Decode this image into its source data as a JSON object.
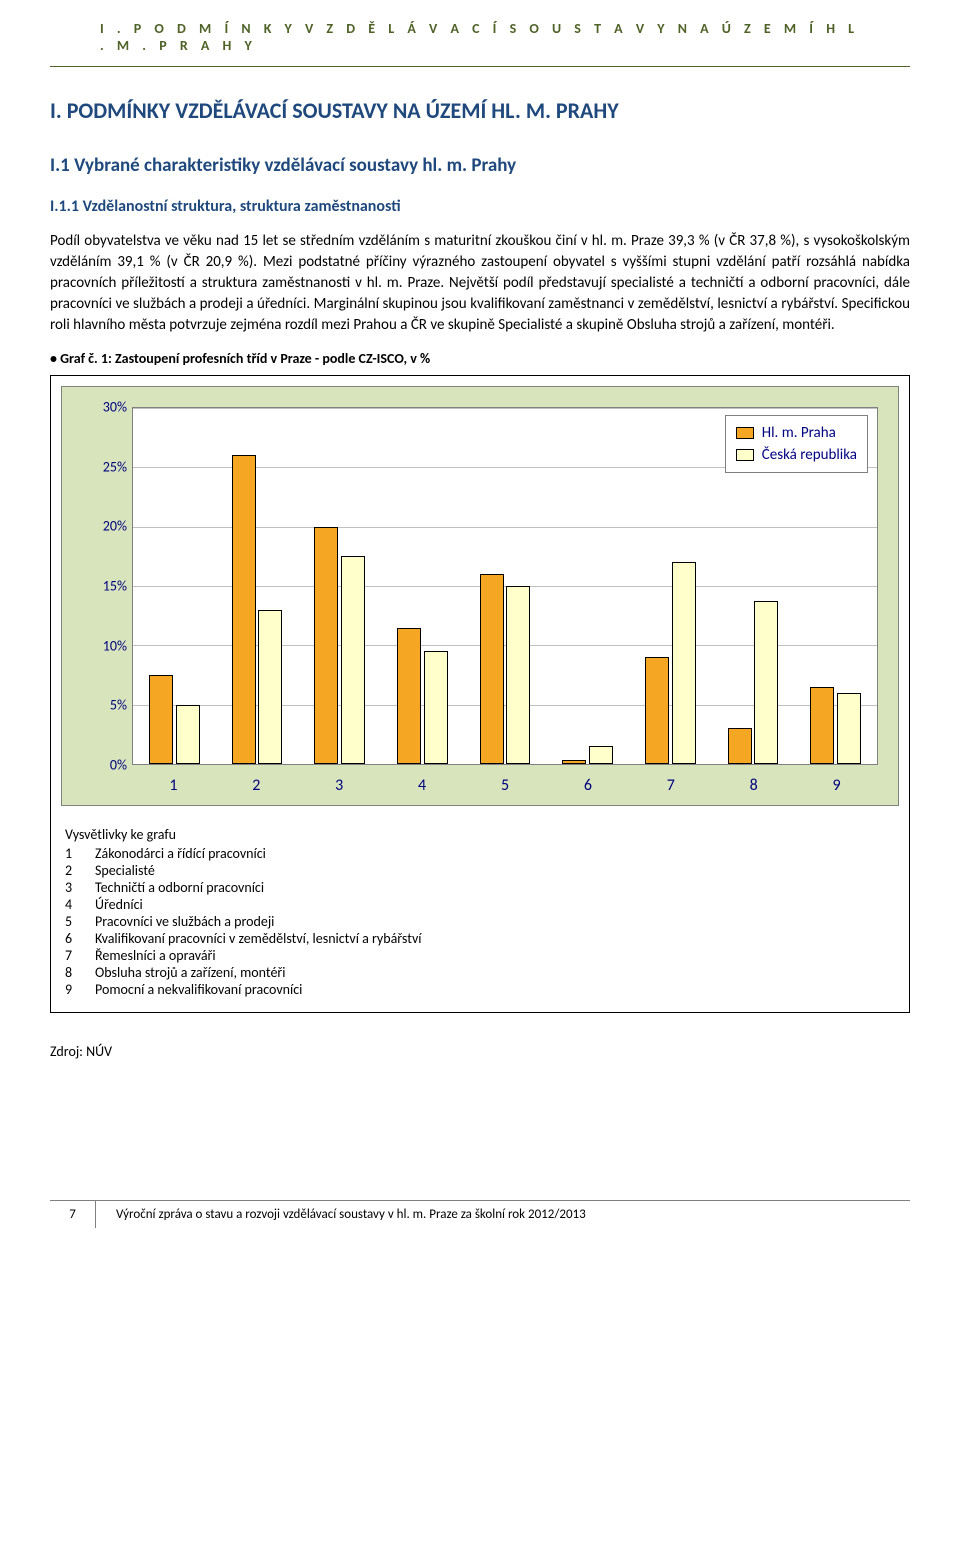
{
  "header_runner": "I .   P O D M Í N K Y   V Z D Ě L Á V A C Í   S O U S T A V Y   N A   Ú Z E M Í   H L .   M .   P R A H Y",
  "h1": "I. PODMÍNKY VZDĚLÁVACÍ SOUSTAVY NA ÚZEMÍ HL. M. PRAHY",
  "h2": "I.1 Vybrané charakteristiky vzdělávací soustavy hl. m. Prahy",
  "h3": "I.1.1 Vzdělanostní struktura, struktura zaměstnanosti",
  "body_p1": "Podíl obyvatelstva ve věku nad 15 let se středním vzděláním s maturitní zkouškou činí v hl. m. Praze 39,3 % (v ČR 37,8 %), s vysokoškolským vzděláním 39,1 % (v ČR 20,9 %). Mezi podstatné příčiny výrazného zastoupení obyvatel s vyššími stupni vzdělání patří rozsáhlá nabídka pracovních příležitostí a struktura zaměstnanosti v hl. m. Praze. Největší podíl představují specialisté a techničtí a odborní pracovníci, dále pracovníci ve službách a prodeji a úředníci. Marginální skupinou jsou kvalifikovaní zaměstnanci v zemědělství, lesnictví a rybářství. Specifickou roli hlavního města potvrzuje zejména rozdíl mezi Prahou a ČR ve skupině Specialisté a skupině Obsluha strojů a zařízení, montéři.",
  "chart": {
    "title": "Graf č. 1: Zastoupení profesních tříd v Praze - podle CZ-ISCO, v %",
    "type": "bar",
    "ylim": [
      0,
      30
    ],
    "ytick_step": 5,
    "ytick_labels": [
      "0%",
      "5%",
      "10%",
      "15%",
      "20%",
      "25%",
      "30%"
    ],
    "categories": [
      "1",
      "2",
      "3",
      "4",
      "5",
      "6",
      "7",
      "8",
      "9"
    ],
    "series": [
      {
        "name": "Hl. m. Praha",
        "color": "#f5a623",
        "values": [
          7.5,
          26,
          20,
          11.5,
          16,
          0.3,
          9,
          3,
          6.5
        ]
      },
      {
        "name": "Česká republika",
        "color": "#ffffcc",
        "values": [
          5,
          13,
          17.5,
          9.5,
          15,
          1.5,
          17,
          13.7,
          6
        ]
      }
    ],
    "background_color": "#d8e4bc",
    "plot_bg": "#ffffff",
    "grid_color": "#c0c0c0",
    "bar_width_pct": 3.2,
    "group_gap_pct": 0.4,
    "legend": {
      "title": null,
      "items": [
        {
          "swatch": "#f5a623",
          "label": "Hl. m. Praha"
        },
        {
          "swatch": "#ffffcc",
          "label": "Česká republika"
        }
      ]
    },
    "explain": {
      "title": "Vysvětlivky ke grafu",
      "rows": [
        {
          "n": "1",
          "t": "Zákonodárci a řídící pracovníci"
        },
        {
          "n": "2",
          "t": "Specialisté"
        },
        {
          "n": "3",
          "t": "Techničtí a odborní pracovníci"
        },
        {
          "n": "4",
          "t": "Úředníci"
        },
        {
          "n": "5",
          "t": "Pracovníci ve službách a prodeji"
        },
        {
          "n": "6",
          "t": "Kvalifikovaní pracovníci v zemědělství, lesnictví a rybářství"
        },
        {
          "n": "7",
          "t": "Řemeslníci a opraváři"
        },
        {
          "n": "8",
          "t": "Obsluha strojů a zařízení, montéři"
        },
        {
          "n": "9",
          "t": "Pomocní a nekvalifikovaní pracovníci"
        }
      ]
    }
  },
  "source": "Zdroj: NÚV",
  "footer": {
    "page": "7",
    "text": "Výroční zpráva o stavu a rozvoji vzdělávací soustavy v hl. m. Praze za školní rok 2012/2013"
  }
}
